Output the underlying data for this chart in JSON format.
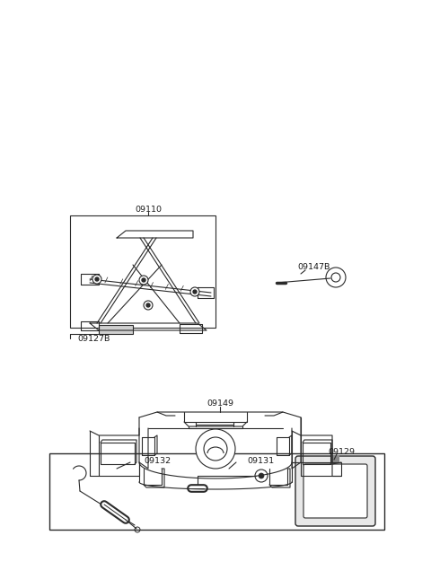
{
  "bg_color": "#ffffff",
  "line_color": "#2a2a2a",
  "text_color": "#1a1a1a",
  "label_fontsize": 6.8,
  "fig_width": 4.8,
  "fig_height": 6.55
}
